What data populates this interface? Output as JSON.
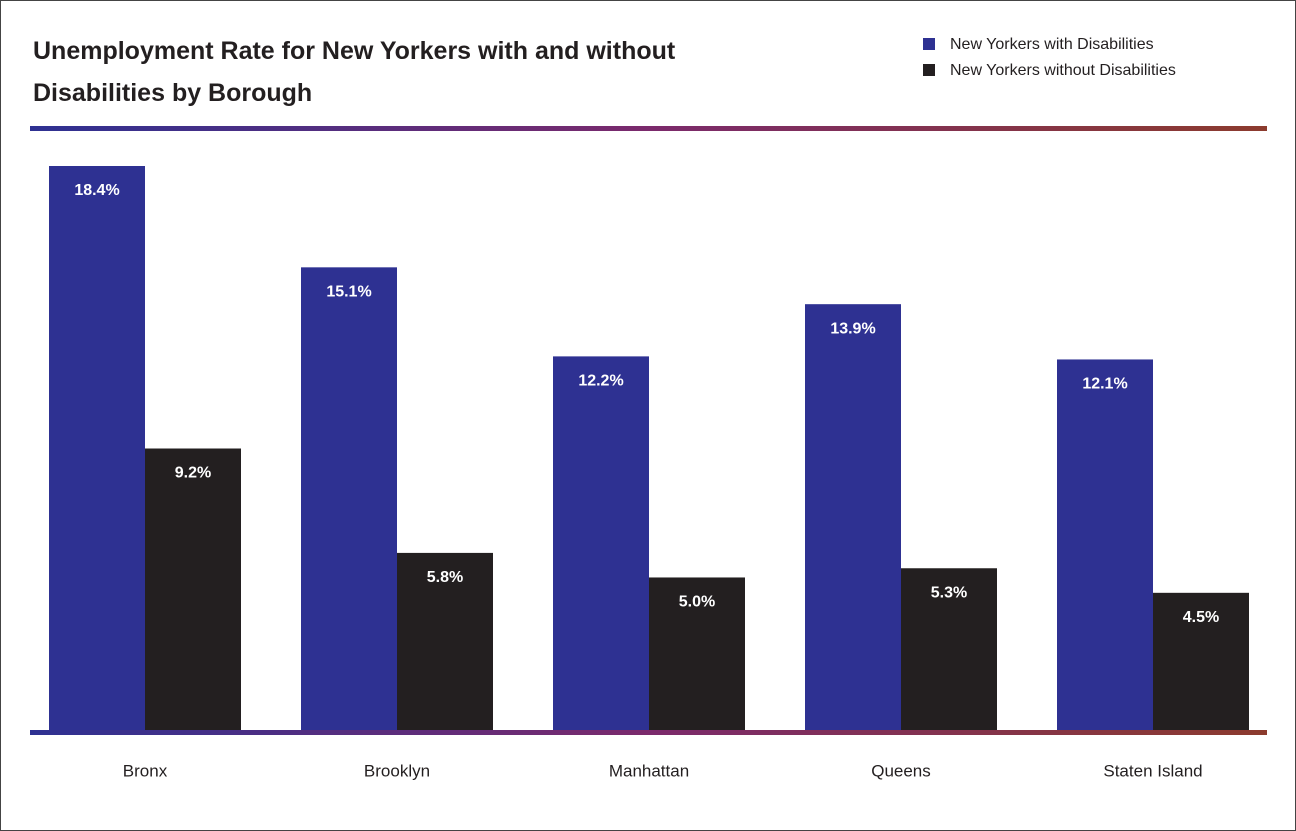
{
  "chart_data": {
    "type": "bar",
    "title": "Unemployment Rate for New Yorkers with and without Disabilities by Borough",
    "categories": [
      "Bronx",
      "Brooklyn",
      "Manhattan",
      "Queens",
      "Staten Island"
    ],
    "series": [
      {
        "name": "New Yorkers with Disabilities",
        "color": "#2e3192",
        "values": [
          18.4,
          15.1,
          12.2,
          13.9,
          12.1
        ],
        "value_labels": [
          "18.4%",
          "15.1%",
          "12.2%",
          "13.9%",
          "12.1%"
        ]
      },
      {
        "name": "New Yorkers without Disabilities",
        "color": "#231f20",
        "values": [
          9.2,
          5.8,
          5.0,
          5.3,
          4.5
        ],
        "value_labels": [
          "9.2%",
          "5.8%",
          "5.0%",
          "5.3%",
          "4.5%"
        ]
      }
    ],
    "legend": "top-right"
  }
}
